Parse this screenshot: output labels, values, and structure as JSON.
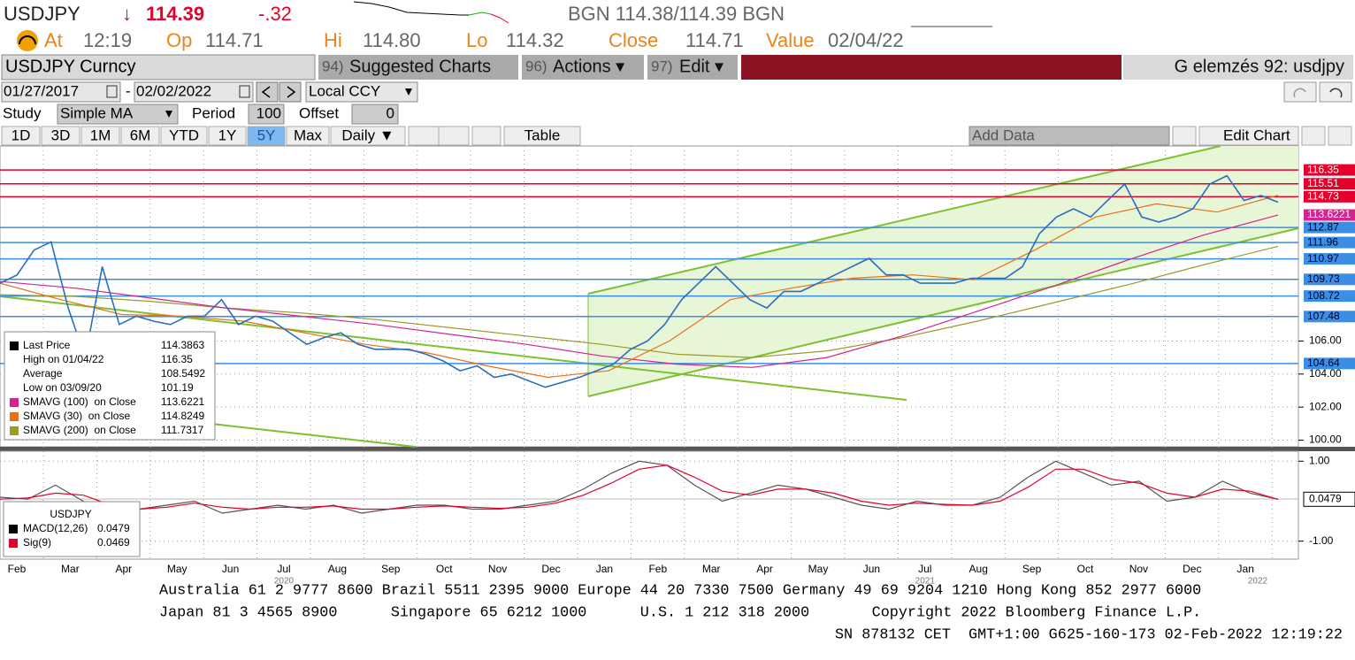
{
  "header": {
    "ticker": "USDJPY",
    "arrow": "↓",
    "last": "114.39",
    "change": "-.32",
    "bid_ask": "BGN 114.38/114.39 BGN",
    "at_label": "At",
    "at": "12:19",
    "open_label": "Op",
    "open": "114.71",
    "high_label": "Hi",
    "high": "114.80",
    "low_label": "Lo",
    "low": "114.32",
    "close_label": "Close",
    "close": "114.71",
    "value_label": "Value",
    "value_date": "02/04/22"
  },
  "toolbar": {
    "security": "USDJPY Curncy",
    "suggested_num": "94)",
    "suggested": "Suggested Charts",
    "actions_num": "96)",
    "actions": "Actions ▾",
    "edit_num": "97)",
    "edit": "Edit ▾",
    "page": "G elemzés 92: usdjpy"
  },
  "range": {
    "start": "01/27/2017",
    "dash": "-",
    "end": "02/02/2022",
    "currency": "Local CCY"
  },
  "study": {
    "label": "Study",
    "type": "Simple MA",
    "period_label": "Period",
    "period": "100",
    "offset_label": "Offset",
    "offset": "0"
  },
  "tabs": [
    "1D",
    "3D",
    "1M",
    "6M",
    "YTD",
    "1Y",
    "5Y",
    "Max",
    "Daily ▼",
    "Table"
  ],
  "selected_tab": 6,
  "add_data": "Add Data",
  "edit_chart": "Edit Chart",
  "chart_data": [
    {
      "type": "line",
      "ylim": [
        99.6,
        117.8
      ],
      "yticks": [
        {
          "value": 100,
          "label": "100.00"
        },
        {
          "value": 102,
          "label": "102.00"
        },
        {
          "value": 104,
          "label": "104.00"
        },
        {
          "value": 106,
          "label": "106.00"
        }
      ],
      "grid": true,
      "series": [
        {
          "color": "#2a6ebd",
          "values": [
            109.5,
            110,
            111.5,
            112,
            108,
            105,
            110.5,
            107,
            107.5,
            107.2,
            107,
            107.5,
            107.5,
            108.5,
            107,
            107.5,
            107.2,
            106.5,
            105.8,
            106.2,
            106.5,
            105.8,
            105.5,
            105.5,
            105.5,
            105.2,
            104.8,
            104.2,
            104.5,
            103.8,
            104,
            103.6,
            103.2,
            103.5,
            103.8,
            104.2,
            104.6,
            105.5,
            106,
            107,
            108.5,
            109.5,
            110.5,
            109.5,
            108.5,
            108,
            109,
            109,
            109.5,
            110,
            110.5,
            111,
            110,
            110,
            109.5,
            109.5,
            109.5,
            109.8,
            109.8,
            109.8,
            110.5,
            112.5,
            113.5,
            114,
            113.5,
            114.5,
            115.5,
            113.5,
            113.2,
            113.5,
            114,
            115.5,
            116,
            114.5,
            114.8,
            114.4
          ]
        },
        {
          "color": "#e8701a",
          "values": [
            109.5,
            108.5,
            107.6,
            107.5,
            107.2,
            106.5,
            105.8,
            105.3,
            104.5,
            103.8,
            104.2,
            106,
            108.5,
            109.2,
            109.8,
            110,
            109.7,
            111.5,
            113.5,
            114.3,
            113.8,
            114.82
          ]
        },
        {
          "color": "#d4248f",
          "values": [
            109.6,
            109.2,
            108.6,
            108,
            107.5,
            107,
            106.4,
            105.8,
            105.1,
            104.6,
            104.4,
            105,
            106.3,
            107.8,
            109.3,
            110.9,
            112.4,
            113.62
          ]
        },
        {
          "color": "#9b9a2a",
          "values": [
            108.8,
            108.7,
            108.4,
            108,
            107.7,
            107.3,
            106.8,
            106.3,
            105.8,
            105.2,
            105,
            105.4,
            106.2,
            107.2,
            108.3,
            109.4,
            110.6,
            111.73
          ]
        }
      ],
      "levels": [
        116.35,
        115.51,
        114.73,
        113.6221,
        112.87,
        111.96,
        110.97,
        109.73,
        108.72,
        107.48,
        104.64
      ],
      "level_colors": [
        "#e4002b",
        "#e4002b",
        "#e4002b",
        "#d4248f",
        "#3a8ee6",
        "#3a8ee6",
        "#3a8ee6",
        "#3a8ee6",
        "#3a8ee6",
        "#3a8ee6",
        "#3a8ee6"
      ],
      "legend": [
        {
          "label": "Last Price",
          "value": "114.3863",
          "color": "#000000"
        },
        {
          "label": "High on 01/04/22",
          "value": "116.35"
        },
        {
          "label": "Average",
          "value": "108.5492"
        },
        {
          "label": "Low on 03/09/20",
          "value": "101.19"
        },
        {
          "label": "SMAVG (100)  on Close",
          "value": "113.6221",
          "color": "#d4248f"
        },
        {
          "label": "SMAVG (30)  on Close",
          "value": "114.8249",
          "color": "#e8701a"
        },
        {
          "label": "SMAVG (200)  on Close",
          "value": "111.7317",
          "color": "#9b9a2a"
        }
      ],
      "x_labels": [
        "Feb",
        "Mar",
        "Apr",
        "May",
        "Jun",
        "Jul",
        "Aug",
        "Sep",
        "Oct",
        "Nov",
        "Dec",
        "Jan",
        "Feb",
        "Mar",
        "Apr",
        "May",
        "Jun",
        "Jul",
        "Aug",
        "Sep",
        "Oct",
        "Nov",
        "Dec",
        "Jan"
      ],
      "years": [
        "2020",
        "2021",
        "2022"
      ]
    },
    {
      "type": "line",
      "ylim": [
        -1.45,
        1.25
      ],
      "yticks": [
        {
          "value": 1,
          "label": "1.00"
        },
        {
          "value": -1,
          "label": "-1.00"
        }
      ],
      "series": [
        {
          "color": "#555555",
          "values": [
            0.1,
            0.05,
            0.4,
            0.0,
            -0.3,
            -0.2,
            -0.1,
            0.0,
            -0.3,
            -0.2,
            -0.1,
            -0.2,
            -0.1,
            -0.3,
            -0.2,
            -0.1,
            -0.1,
            -0.2,
            -0.2,
            -0.1,
            0.0,
            0.3,
            0.7,
            1.0,
            0.9,
            0.4,
            0.0,
            0.2,
            0.4,
            0.3,
            0.1,
            -0.1,
            -0.2,
            0.0,
            -0.1,
            -0.1,
            0.1,
            0.6,
            1.0,
            0.7,
            0.4,
            0.5,
            0.0,
            0.1,
            0.5,
            0.2,
            0.0479
          ]
        },
        {
          "color": "#e4002b",
          "values": [
            0.05,
            0.08,
            0.2,
            0.15,
            -0.1,
            -0.2,
            -0.15,
            -0.05,
            -0.15,
            -0.2,
            -0.15,
            -0.15,
            -0.12,
            -0.2,
            -0.2,
            -0.15,
            -0.12,
            -0.15,
            -0.18,
            -0.15,
            -0.05,
            0.15,
            0.45,
            0.8,
            0.9,
            0.6,
            0.25,
            0.15,
            0.3,
            0.3,
            0.2,
            0.0,
            -0.1,
            -0.05,
            -0.08,
            -0.1,
            0.0,
            0.35,
            0.8,
            0.8,
            0.55,
            0.45,
            0.2,
            0.1,
            0.3,
            0.25,
            0.0469
          ]
        }
      ],
      "legend_title": "USDJPY",
      "legend": [
        {
          "label": "MACD(12,26)",
          "value": "0.0479",
          "color": "#000000"
        },
        {
          "label": "Sig(9)",
          "value": "0.0469",
          "color": "#e4002b"
        }
      ]
    }
  ],
  "footer": [
    "Australia 61 2 9777 8600 Brazil 5511 2395 9000 Europe 44 20 7330 7500 Germany 49 69 9204 1210 Hong Kong 852 2977 6000",
    "Japan 81 3 4565 8900      Singapore 65 6212 1000      U.S. 1 212 318 2000       Copyright 2022 Bloomberg Finance L.P.",
    "SN 878132 CET  GMT+1:00 G625-160-173 02-Feb-2022 12:19:22"
  ]
}
